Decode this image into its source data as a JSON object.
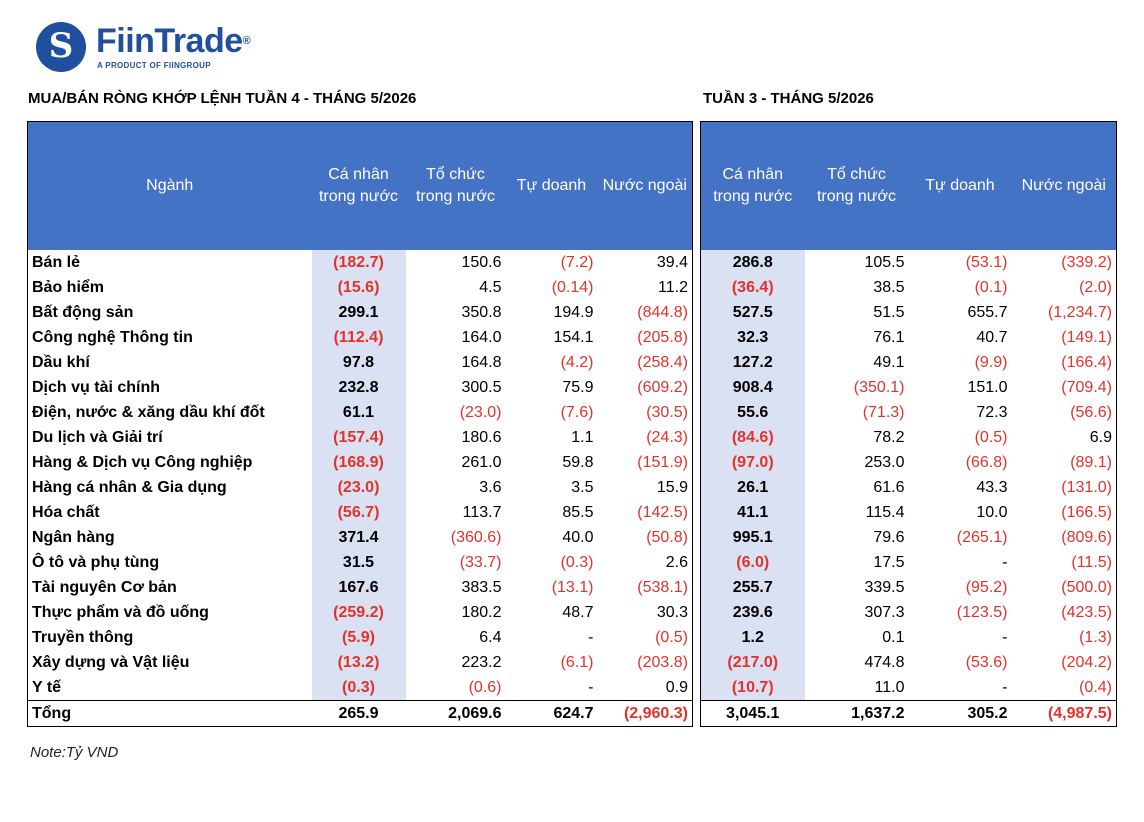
{
  "brand": {
    "logo_letter": "S",
    "name": "FiinTrade",
    "reg": "®",
    "tagline": "A PRODUCT OF FIINGROUP"
  },
  "title_left": "MUA/BÁN RÒNG KHỚP LỆNH TUẦN 4 - THÁNG 5/2026",
  "title_right": "TUẦN 3 - THÁNG 5/2026",
  "headers_left": [
    "Ngành",
    "Cá nhân trong nước",
    "Tổ chức trong nước",
    "Tự doanh",
    "Nước ngoài"
  ],
  "headers_right": [
    "Cá nhân trong nước",
    "Tổ chức trong nước",
    "Tự doanh",
    "Nước ngoài"
  ],
  "rows": [
    {
      "sector": "Bán lẻ",
      "w4": [
        "(182.7)",
        "150.6",
        "(7.2)",
        "39.4"
      ],
      "w3": [
        "286.8",
        "105.5",
        "(53.1)",
        "(339.2)"
      ]
    },
    {
      "sector": "Bảo hiểm",
      "w4": [
        "(15.6)",
        "4.5",
        "(0.14)",
        "11.2"
      ],
      "w3": [
        "(36.4)",
        "38.5",
        "(0.1)",
        "(2.0)"
      ]
    },
    {
      "sector": "Bất động sản",
      "w4": [
        "299.1",
        "350.8",
        "194.9",
        "(844.8)"
      ],
      "w3": [
        "527.5",
        "51.5",
        "655.7",
        "(1,234.7)"
      ]
    },
    {
      "sector": "Công nghệ Thông tin",
      "w4": [
        "(112.4)",
        "164.0",
        "154.1",
        "(205.8)"
      ],
      "w3": [
        "32.3",
        "76.1",
        "40.7",
        "(149.1)"
      ]
    },
    {
      "sector": "Dầu khí",
      "w4": [
        "97.8",
        "164.8",
        "(4.2)",
        "(258.4)"
      ],
      "w3": [
        "127.2",
        "49.1",
        "(9.9)",
        "(166.4)"
      ]
    },
    {
      "sector": "Dịch vụ tài chính",
      "w4": [
        "232.8",
        "300.5",
        "75.9",
        "(609.2)"
      ],
      "w3": [
        "908.4",
        "(350.1)",
        "151.0",
        "(709.4)"
      ]
    },
    {
      "sector": "Điện, nước & xăng dầu khí đốt",
      "w4": [
        "61.1",
        "(23.0)",
        "(7.6)",
        "(30.5)"
      ],
      "w3": [
        "55.6",
        "(71.3)",
        "72.3",
        "(56.6)"
      ]
    },
    {
      "sector": "Du lịch và Giải trí",
      "w4": [
        "(157.4)",
        "180.6",
        "1.1",
        "(24.3)"
      ],
      "w3": [
        "(84.6)",
        "78.2",
        "(0.5)",
        "6.9"
      ]
    },
    {
      "sector": "Hàng & Dịch vụ Công nghiệp",
      "w4": [
        "(168.9)",
        "261.0",
        "59.8",
        "(151.9)"
      ],
      "w3": [
        "(97.0)",
        "253.0",
        "(66.8)",
        "(89.1)"
      ]
    },
    {
      "sector": "Hàng cá nhân & Gia dụng",
      "w4": [
        "(23.0)",
        "3.6",
        "3.5",
        "15.9"
      ],
      "w3": [
        "26.1",
        "61.6",
        "43.3",
        "(131.0)"
      ]
    },
    {
      "sector": "Hóa chất",
      "w4": [
        "(56.7)",
        "113.7",
        "85.5",
        "(142.5)"
      ],
      "w3": [
        "41.1",
        "115.4",
        "10.0",
        "(166.5)"
      ]
    },
    {
      "sector": "Ngân hàng",
      "w4": [
        "371.4",
        "(360.6)",
        "40.0",
        "(50.8)"
      ],
      "w3": [
        "995.1",
        "79.6",
        "(265.1)",
        "(809.6)"
      ]
    },
    {
      "sector": "Ô tô và phụ tùng",
      "w4": [
        "31.5",
        "(33.7)",
        "(0.3)",
        "2.6"
      ],
      "w3": [
        "(6.0)",
        "17.5",
        "-",
        "(11.5)"
      ]
    },
    {
      "sector": "Tài nguyên Cơ bản",
      "w4": [
        "167.6",
        "383.5",
        "(13.1)",
        "(538.1)"
      ],
      "w3": [
        "255.7",
        "339.5",
        "(95.2)",
        "(500.0)"
      ]
    },
    {
      "sector": "Thực phẩm và đồ uống",
      "w4": [
        "(259.2)",
        "180.2",
        "48.7",
        "30.3"
      ],
      "w3": [
        "239.6",
        "307.3",
        "(123.5)",
        "(423.5)"
      ]
    },
    {
      "sector": "Truyền thông",
      "w4": [
        "(5.9)",
        "6.4",
        "-",
        "(0.5)"
      ],
      "w3": [
        "1.2",
        "0.1",
        "-",
        "(1.3)"
      ]
    },
    {
      "sector": "Xây dựng và Vật liệu",
      "w4": [
        "(13.2)",
        "223.2",
        "(6.1)",
        "(203.8)"
      ],
      "w3": [
        "(217.0)",
        "474.8",
        "(53.6)",
        "(204.2)"
      ]
    },
    {
      "sector": "Y tế",
      "w4": [
        "(0.3)",
        "(0.6)",
        "-",
        "0.9"
      ],
      "w3": [
        "(10.7)",
        "11.0",
        "-",
        "(0.4)"
      ]
    }
  ],
  "total": {
    "label": "Tổng",
    "w4": [
      "265.9",
      "2,069.6",
      "624.7",
      "(2,960.3)"
    ],
    "w3": [
      "3,045.1",
      "1,637.2",
      "305.2",
      "(4,987.5)"
    ]
  },
  "note": "Note:Tỷ VND",
  "colors": {
    "header_bg": "#4472c4",
    "highlight_bg": "#d9e1f2",
    "negative": "#e1332b",
    "brand": "#1f4f9d"
  }
}
